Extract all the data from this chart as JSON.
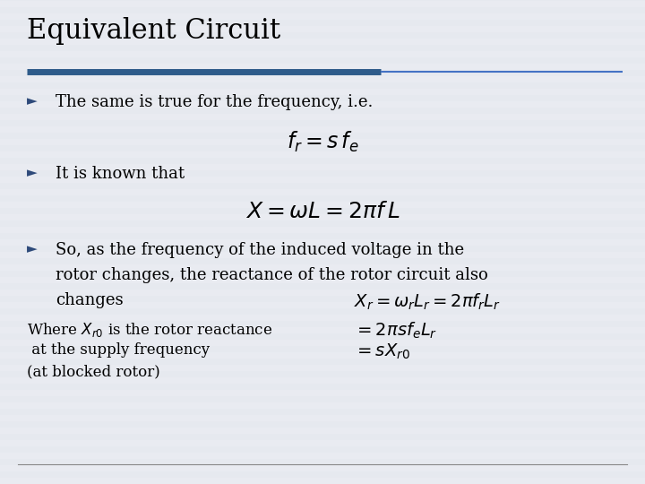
{
  "title": "Equivalent Circuit",
  "title_fontsize": 22,
  "title_color": "#000000",
  "title_underline_thick_color": "#2E5B8A",
  "title_underline_thin_color": "#4472C4",
  "bg_color": "#E8EAF0",
  "bullet_color": "#2E4A7A",
  "bullet_char": "►",
  "bullet1": "The same is true for the frequency, i.e.",
  "formula1": "$f_r = s\\, f_e$",
  "bullet2": "It is known that",
  "formula2": "$X = \\omega L = 2\\pi f\\, L$",
  "bullet3_line1": "So, as the frequency of the induced voltage in the",
  "bullet3_line2": "rotor changes, the reactance of the rotor circuit also",
  "bullet3_line3": "changes",
  "formula3a": "$X_r = \\omega_r L_r = 2\\pi f_r L_r$",
  "formula3b": "$= 2\\pi s f_e L_r$",
  "formula3c": "$= s X_{r0}$",
  "footnote1": "Where $X_{r0}$ is the rotor reactance",
  "footnote2": " at the supply frequency",
  "footnote3": "(at blocked rotor)",
  "text_color": "#000000",
  "formula_color": "#000000",
  "body_fontsize": 13,
  "formula_fontsize": 15
}
